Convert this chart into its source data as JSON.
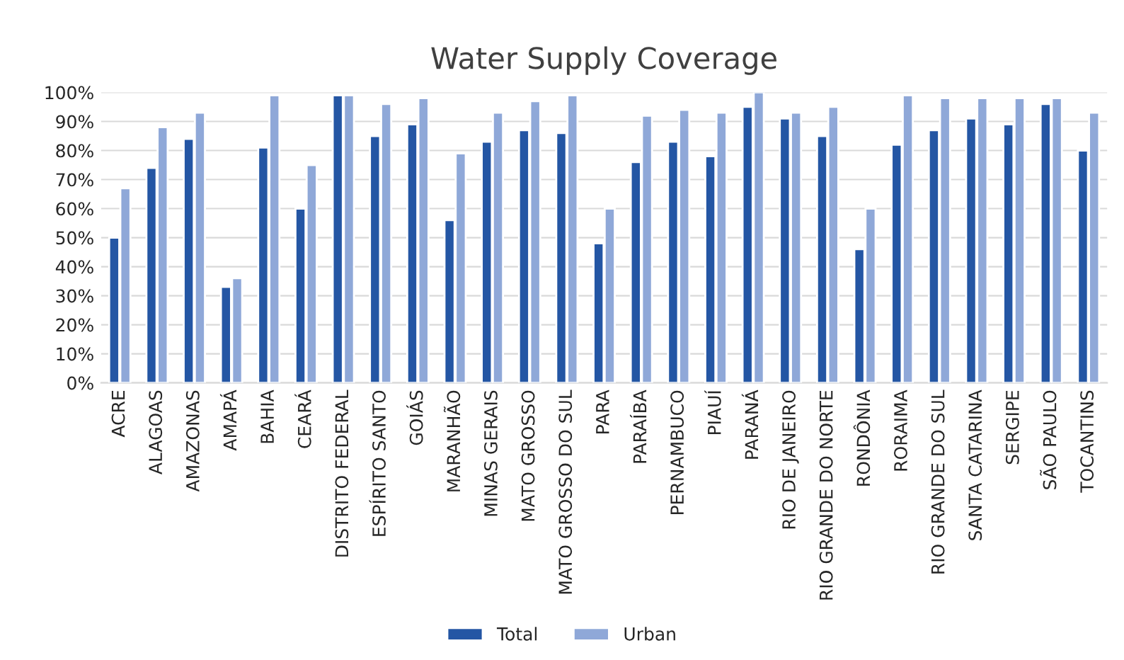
{
  "chart_data": {
    "type": "bar",
    "title": "Water Supply Coverage",
    "categories": [
      "ACRE",
      "ALAGOAS",
      "AMAZONAS",
      "AMAPÁ",
      "BAHIA",
      "CEARÁ",
      "DISTRITO FEDERAL",
      "ESPÍRITO SANTO",
      "GOIÁS",
      "MARANHÃO",
      "MINAS GERAIS",
      "MATO GROSSO",
      "MATO GROSSO DO SUL",
      "PARA",
      "PARAÍBA",
      "PERNAMBUCO",
      "PIAUÍ",
      "PARANÁ",
      "RIO DE JANEIRO",
      "RIO GRANDE DO NORTE",
      "RONDÔNIA",
      "RORAIMA",
      "RIO GRANDE DO SUL",
      "SANTA CATARINA",
      "SERGIPE",
      "SÃO PAULO",
      "TOCANTINS"
    ],
    "series": [
      {
        "name": "Total",
        "color": "#2456a4",
        "values": [
          50,
          74,
          84,
          33,
          81,
          60,
          99,
          85,
          89,
          56,
          83,
          87,
          86,
          48,
          76,
          83,
          78,
          95,
          91,
          85,
          46,
          82,
          87,
          91,
          89,
          96,
          80
        ]
      },
      {
        "name": "Urban",
        "color": "#8fa8d8",
        "values": [
          67,
          88,
          93,
          36,
          99,
          75,
          99,
          96,
          98,
          79,
          93,
          97,
          99,
          60,
          92,
          94,
          93,
          100,
          93,
          95,
          60,
          99,
          98,
          98,
          98,
          98,
          93
        ]
      }
    ],
    "ylim": [
      0,
      100
    ],
    "yticks": [
      {
        "value": 0,
        "label": "0%"
      },
      {
        "value": 10,
        "label": "10%"
      },
      {
        "value": 20,
        "label": "20%"
      },
      {
        "value": 30,
        "label": "30%"
      },
      {
        "value": 40,
        "label": "40%"
      },
      {
        "value": 50,
        "label": "50%"
      },
      {
        "value": 60,
        "label": "60%"
      },
      {
        "value": 70,
        "label": "70%"
      },
      {
        "value": 80,
        "label": "80%"
      },
      {
        "value": 90,
        "label": "90%"
      },
      {
        "value": 100,
        "label": "100%"
      }
    ],
    "grid": "y",
    "legend": "bottom"
  }
}
